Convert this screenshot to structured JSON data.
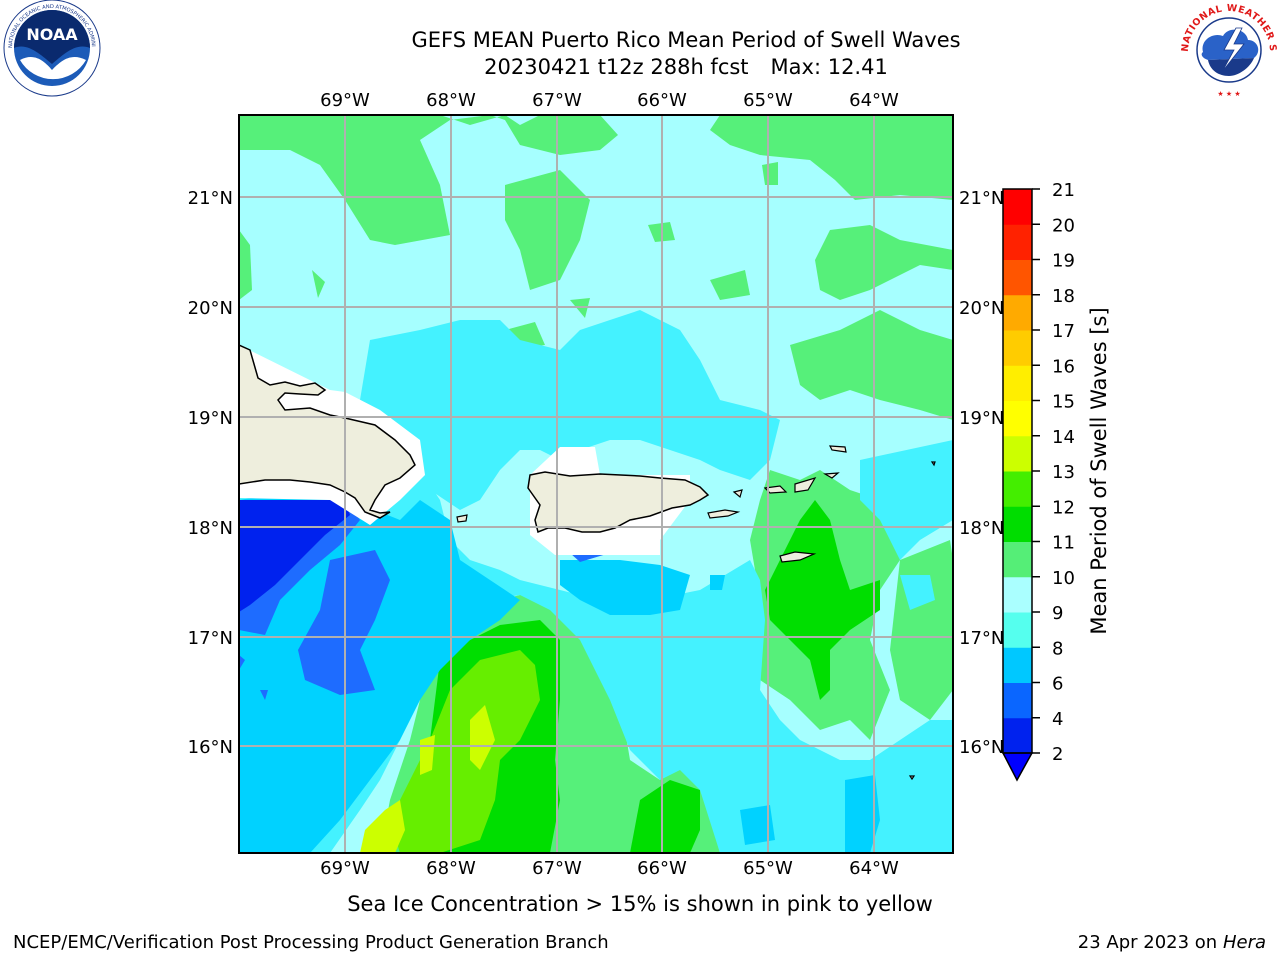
{
  "header": {
    "title_line1": "GEFS MEAN Puerto Rico Mean Period of Swell Waves",
    "title_date": "20230421 t12z 288h fcst",
    "title_max": "Max: 12.41"
  },
  "logos": {
    "left": "noaa-logo",
    "left_text": "NOAA",
    "left_ring_text": "NATIONAL OCEANIC AND ATMOSPHERIC ADMINISTRATION · U.S. DEPARTMENT OF COMMERCE",
    "right": "nws-logo",
    "right_ring_text": "NATIONAL WEATHER SERVICE"
  },
  "map": {
    "lon_labels": [
      "69°W",
      "68°W",
      "67°W",
      "66°W",
      "65°W",
      "64°W"
    ],
    "lat_labels": [
      "21°N",
      "20°N",
      "19°N",
      "18°N",
      "17°N",
      "16°N"
    ],
    "lon_range": [
      -70.0,
      -63.25
    ],
    "lat_range": [
      15.0,
      21.75
    ]
  },
  "colorbar": {
    "label": "Mean Period of Swell Waves [s]",
    "ticks": [
      "2",
      "4",
      "6",
      "8",
      "9",
      "10",
      "11",
      "12",
      "13",
      "14",
      "15",
      "16",
      "17",
      "18",
      "19",
      "20",
      "21"
    ],
    "colors": [
      "#0022ee",
      "#0a66ff",
      "#00c8ff",
      "#00eeff",
      "#55ffee",
      "#aaffff",
      "#55ee77",
      "#00dd00",
      "#44ee00",
      "#88ee00",
      "#ccff00",
      "#ffff00",
      "#ffee00",
      "#ffcc00",
      "#ffaa00",
      "#ff8800",
      "#ff5500",
      "#ff2200",
      "#ff0000"
    ],
    "extend_color": "#0000ff"
  },
  "palette": {
    "t2": "#0022ee",
    "t4": "#1e6cff",
    "t6": "#00d2ff",
    "t8": "#44f2ff",
    "t9": "#a6ffff",
    "t10": "#56f07a",
    "t11": "#00de00",
    "t12": "#66ee00",
    "t13": "#ccff00",
    "land": "#eeeedd",
    "mask": "#ffffff",
    "grid": "#b0b0b0"
  },
  "notes": {
    "sea_ice": "Sea Ice Concentration > 15% is shown in pink to yellow"
  },
  "footer": {
    "left": "NCEP/EMC/Verification Post Processing Product Generation Branch",
    "right_date": "23 Apr 2023 on",
    "right_host": "Hera"
  }
}
